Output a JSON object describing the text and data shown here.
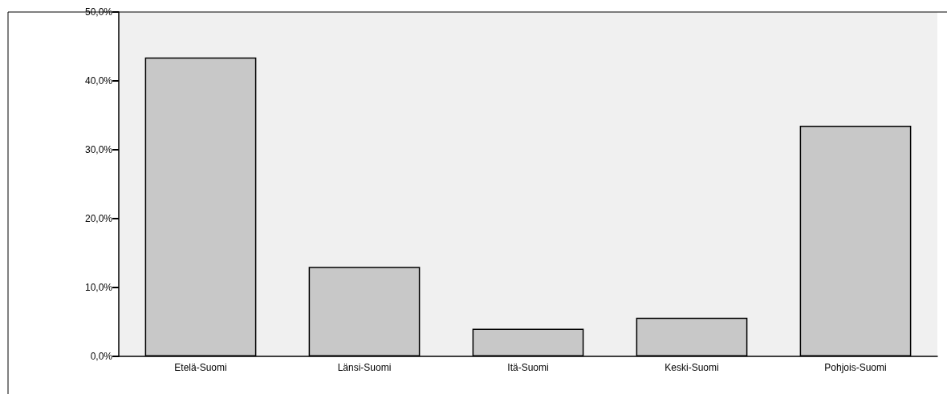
{
  "chart_data": {
    "type": "bar",
    "categories": [
      "Etelä-Suomi",
      "Länsi-Suomi",
      "Itä-Suomi",
      "Keski-Suomi",
      "Pohjois-Suomi"
    ],
    "values": [
      43.4,
      13.0,
      4.0,
      5.6,
      33.5
    ],
    "color": "#c8c8c8",
    "ylim": [
      0,
      50
    ],
    "yticks": [
      {
        "value": 0,
        "label": "0,0%"
      },
      {
        "value": 10,
        "label": "10,0%"
      },
      {
        "value": 20,
        "label": "20,0%"
      },
      {
        "value": 30,
        "label": "30,0%"
      },
      {
        "value": 40,
        "label": "40,0%"
      },
      {
        "value": 50,
        "label": "50,0%"
      }
    ],
    "grid": false
  }
}
